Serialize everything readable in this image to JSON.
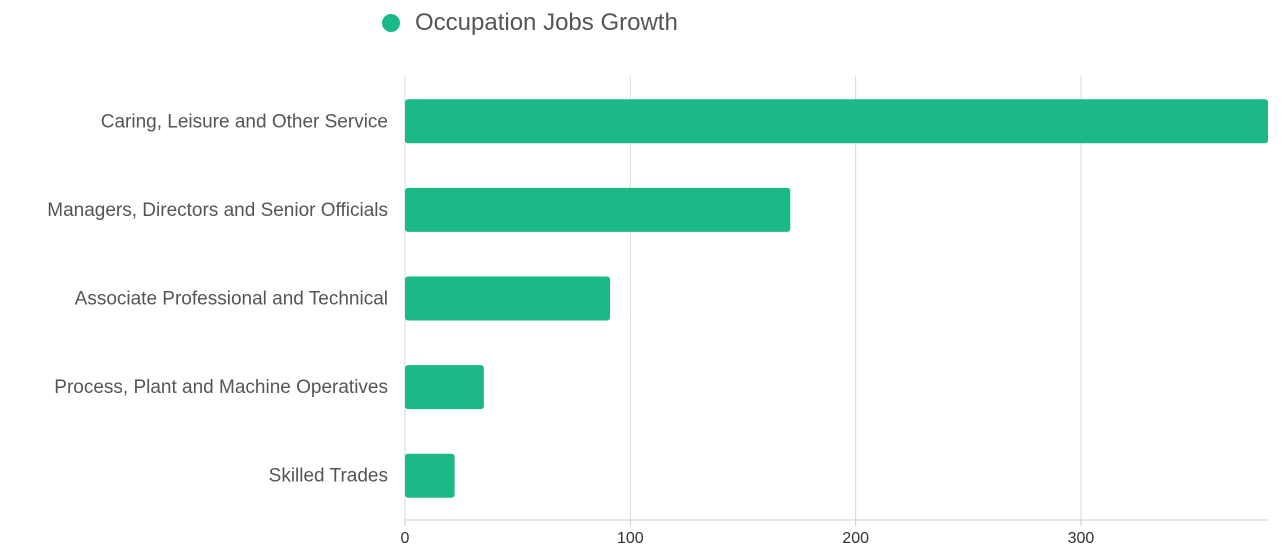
{
  "legend": {
    "label": "Occupation Jobs Growth",
    "color": "#1bb987"
  },
  "chart_data": {
    "type": "bar",
    "orientation": "horizontal",
    "categories": [
      "Caring, Leisure and Other Service",
      "Managers, Directors and Senior Officials",
      "Associate Professional and Technical",
      "Process, Plant and Machine Operatives",
      "Skilled Trades"
    ],
    "series": [
      {
        "name": "Occupation Jobs Growth",
        "values": [
          383,
          171,
          91,
          35,
          22
        ],
        "color": "#1bb987"
      }
    ],
    "x_ticks": [
      0,
      100,
      200,
      300
    ],
    "xlim": [
      0,
      383
    ],
    "grid": true,
    "legend_position": "top"
  }
}
